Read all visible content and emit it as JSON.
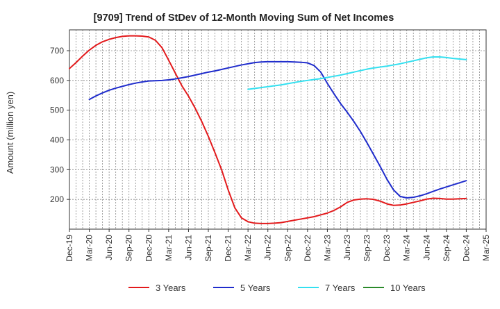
{
  "chart_data": {
    "type": "line",
    "title": "[9709]  Trend of StDev of 12-Month Moving Sum of Net Incomes",
    "ylabel": "Amount (million yen)",
    "xlabel": "",
    "ylim": [
      100,
      770
    ],
    "yticks": [
      200,
      300,
      400,
      500,
      600,
      700
    ],
    "xlim": [
      "2019-12",
      "2025-03"
    ],
    "xticks": [
      "Dec-19",
      "Mar-20",
      "Jun-20",
      "Sep-20",
      "Dec-20",
      "Mar-21",
      "Jun-21",
      "Sep-21",
      "Dec-21",
      "Mar-22",
      "Jun-22",
      "Sep-22",
      "Dec-22",
      "Mar-23",
      "Jun-23",
      "Sep-23",
      "Dec-23",
      "Mar-24",
      "Jun-24",
      "Sep-24",
      "Dec-24",
      "Mar-25"
    ],
    "grid": true,
    "legend_position": "bottom",
    "series": [
      {
        "name": "3 Years",
        "color": "#e31a1c",
        "x": [
          "2019-12",
          "2020-01",
          "2020-02",
          "2020-03",
          "2020-04",
          "2020-05",
          "2020-06",
          "2020-07",
          "2020-08",
          "2020-09",
          "2020-10",
          "2020-11",
          "2020-12",
          "2021-01",
          "2021-02",
          "2021-03",
          "2021-04",
          "2021-05",
          "2021-06",
          "2021-07",
          "2021-08",
          "2021-09",
          "2021-10",
          "2021-11",
          "2021-12",
          "2022-01",
          "2022-02",
          "2022-03",
          "2022-04",
          "2022-05",
          "2022-06",
          "2022-07",
          "2022-08",
          "2022-09",
          "2022-10",
          "2022-11",
          "2022-12",
          "2023-01",
          "2023-02",
          "2023-03",
          "2023-04",
          "2023-05",
          "2023-06",
          "2023-07",
          "2023-08",
          "2023-09",
          "2023-10",
          "2023-11",
          "2023-12",
          "2024-01",
          "2024-02",
          "2024-03",
          "2024-04",
          "2024-05",
          "2024-06",
          "2024-07",
          "2024-08",
          "2024-09",
          "2024-10",
          "2024-11",
          "2024-12"
        ],
        "y": [
          640,
          660,
          682,
          702,
          718,
          730,
          738,
          744,
          748,
          750,
          750,
          749,
          746,
          735,
          710,
          668,
          625,
          582,
          547,
          507,
          462,
          412,
          357,
          300,
          232,
          172,
          138,
          125,
          120,
          119,
          119,
          120,
          122,
          126,
          130,
          134,
          138,
          142,
          148,
          154,
          163,
          175,
          190,
          198,
          201,
          202,
          200,
          194,
          185,
          180,
          181,
          185,
          190,
          195,
          201,
          204,
          203,
          201,
          201,
          202,
          203
        ]
      },
      {
        "name": "5 Years",
        "color": "#1f2ccc",
        "x": [
          "2020-03",
          "2020-04",
          "2020-05",
          "2020-06",
          "2020-07",
          "2020-08",
          "2020-09",
          "2020-10",
          "2020-11",
          "2020-12",
          "2021-01",
          "2021-02",
          "2021-03",
          "2021-04",
          "2021-05",
          "2021-06",
          "2021-07",
          "2021-08",
          "2021-09",
          "2021-10",
          "2021-11",
          "2021-12",
          "2022-01",
          "2022-02",
          "2022-03",
          "2022-04",
          "2022-05",
          "2022-06",
          "2022-07",
          "2022-08",
          "2022-09",
          "2022-10",
          "2022-11",
          "2022-12",
          "2023-01",
          "2023-02",
          "2023-03",
          "2023-04",
          "2023-05",
          "2023-06",
          "2023-07",
          "2023-08",
          "2023-09",
          "2023-10",
          "2023-11",
          "2023-12",
          "2024-01",
          "2024-02",
          "2024-03",
          "2024-04",
          "2024-05",
          "2024-06",
          "2024-07",
          "2024-08",
          "2024-09",
          "2024-10",
          "2024-11",
          "2024-12"
        ],
        "y": [
          536,
          548,
          558,
          567,
          574,
          580,
          586,
          591,
          595,
          598,
          599,
          600,
          602,
          605,
          609,
          613,
          618,
          623,
          628,
          632,
          637,
          642,
          647,
          652,
          656,
          660,
          662,
          663,
          663,
          663,
          663,
          662,
          661,
          659,
          650,
          628,
          590,
          555,
          522,
          493,
          462,
          428,
          390,
          350,
          310,
          268,
          232,
          210,
          205,
          207,
          212,
          219,
          227,
          235,
          242,
          249,
          256,
          263
        ]
      },
      {
        "name": "7 Years",
        "color": "#33e0f0",
        "x": [
          "2022-03",
          "2022-04",
          "2022-05",
          "2022-06",
          "2022-07",
          "2022-08",
          "2022-09",
          "2022-10",
          "2022-11",
          "2022-12",
          "2023-01",
          "2023-02",
          "2023-03",
          "2023-04",
          "2023-05",
          "2023-06",
          "2023-07",
          "2023-08",
          "2023-09",
          "2023-10",
          "2023-11",
          "2023-12",
          "2024-01",
          "2024-02",
          "2024-03",
          "2024-04",
          "2024-05",
          "2024-06",
          "2024-07",
          "2024-08",
          "2024-09",
          "2024-10",
          "2024-11",
          "2024-12"
        ],
        "y": [
          570,
          573,
          576,
          579,
          582,
          585,
          589,
          593,
          597,
          600,
          603,
          606,
          610,
          614,
          618,
          623,
          628,
          633,
          638,
          642,
          645,
          648,
          652,
          656,
          661,
          666,
          671,
          676,
          679,
          679,
          677,
          674,
          672,
          670
        ]
      },
      {
        "name": "10 Years",
        "color": "#2a8a2a",
        "x": [],
        "y": []
      }
    ]
  }
}
